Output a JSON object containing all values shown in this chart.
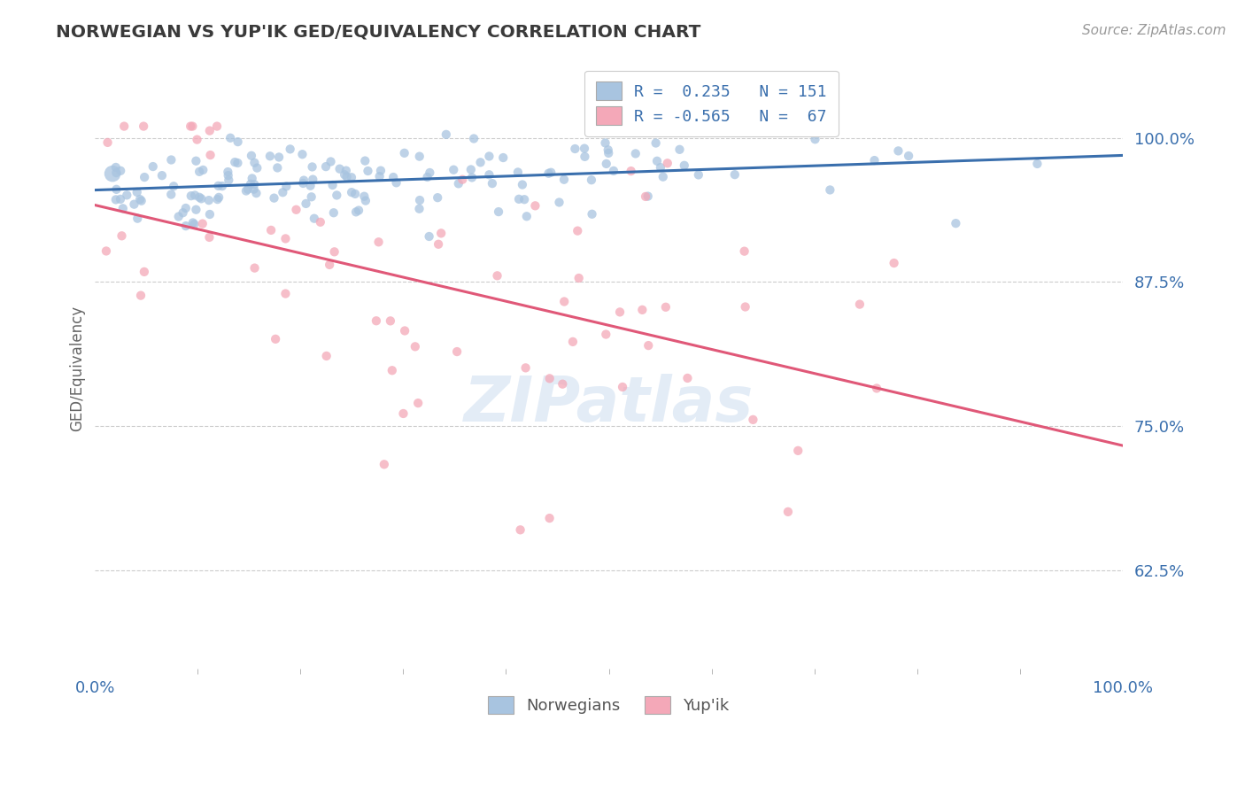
{
  "title": "NORWEGIAN VS YUP'IK GED/EQUIVALENCY CORRELATION CHART",
  "source": "Source: ZipAtlas.com",
  "ylabel": "GED/Equivalency",
  "ytick_labels": [
    "62.5%",
    "75.0%",
    "87.5%",
    "100.0%"
  ],
  "ytick_values": [
    0.625,
    0.75,
    0.875,
    1.0
  ],
  "xlim": [
    0.0,
    1.0
  ],
  "ylim": [
    0.54,
    1.06
  ],
  "norwegian_R": 0.235,
  "norwegian_N": 151,
  "yupik_R": -0.565,
  "yupik_N": 67,
  "norwegian_color": "#a8c4e0",
  "norwegian_line_color": "#3a6fad",
  "yupik_color": "#f4a8b8",
  "yupik_line_color": "#e05878",
  "title_color": "#3a3a3a",
  "axis_label_color": "#3a6fad",
  "background_color": "#ffffff",
  "grid_color": "#cccccc",
  "watermark_text": "ZIPatlas",
  "legend_label_nor": "R =  0.235   N = 151",
  "legend_label_yup": "R = -0.565   N =  67",
  "bottom_legend_nor": "Norwegians",
  "bottom_legend_yup": "Yup'ik"
}
